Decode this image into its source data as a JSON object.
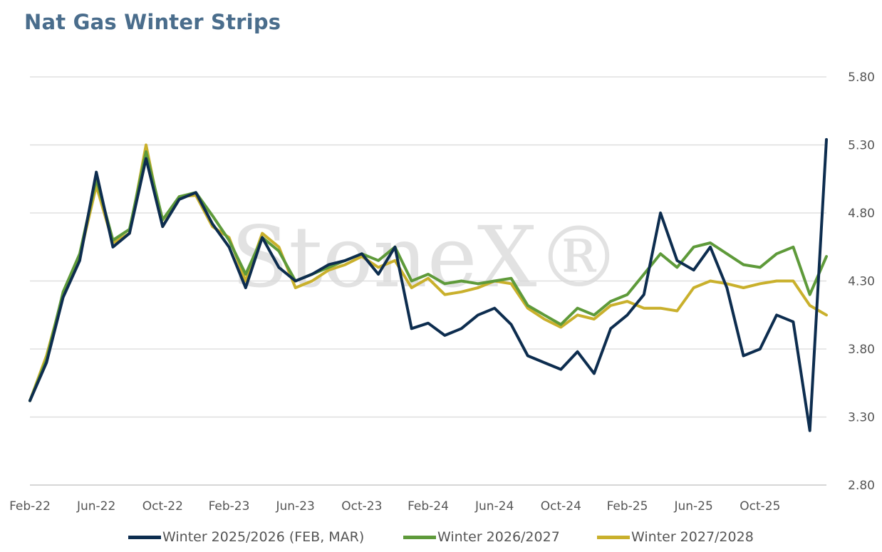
{
  "chart_data": {
    "type": "line",
    "title": "Nat Gas Winter Strips",
    "watermark": "StoneX®",
    "xlabel": "",
    "ylabel": "",
    "x_ticks": [
      "Feb-22",
      "Jun-22",
      "Oct-22",
      "Feb-23",
      "Jun-23",
      "Oct-23",
      "Feb-24",
      "Jun-24",
      "Oct-24",
      "Feb-25",
      "Jun-25",
      "Oct-25"
    ],
    "y_ticks": [
      "2.80",
      "3.30",
      "3.80",
      "4.30",
      "4.80",
      "5.30",
      "5.80"
    ],
    "ylim": [
      2.8,
      5.8
    ],
    "xlim": [
      "2022-02",
      "2026-02"
    ],
    "grid": true,
    "legend_position": "bottom",
    "x": [
      "2022-02",
      "2022-03",
      "2022-04",
      "2022-05",
      "2022-06",
      "2022-07",
      "2022-08",
      "2022-09",
      "2022-10",
      "2022-11",
      "2022-12",
      "2023-01",
      "2023-02",
      "2023-03",
      "2023-04",
      "2023-05",
      "2023-06",
      "2023-07",
      "2023-08",
      "2023-09",
      "2023-10",
      "2023-11",
      "2023-12",
      "2024-01",
      "2024-02",
      "2024-03",
      "2024-04",
      "2024-05",
      "2024-06",
      "2024-07",
      "2024-08",
      "2024-09",
      "2024-10",
      "2024-11",
      "2024-12",
      "2025-01",
      "2025-02",
      "2025-03",
      "2025-04",
      "2025-05",
      "2025-06",
      "2025-07",
      "2025-08",
      "2025-09",
      "2025-10",
      "2025-11",
      "2025-12",
      "2026-01",
      "2026-02"
    ],
    "series": [
      {
        "name": "Winter 2025/2026 (FEB, MAR)",
        "color": "#0d2d4f",
        "values": [
          3.42,
          3.7,
          4.18,
          4.45,
          5.1,
          4.55,
          4.65,
          5.2,
          4.7,
          4.9,
          4.95,
          4.72,
          4.55,
          4.25,
          4.62,
          4.4,
          4.3,
          4.35,
          4.42,
          4.45,
          4.5,
          4.35,
          4.55,
          3.95,
          3.99,
          3.9,
          3.95,
          4.05,
          4.1,
          3.98,
          3.75,
          3.7,
          3.65,
          3.78,
          3.62,
          3.95,
          4.05,
          4.2,
          4.8,
          4.45,
          4.38,
          4.55,
          4.25,
          3.75,
          3.8,
          4.05,
          4.0,
          3.2,
          5.34
        ]
      },
      {
        "name": "Winter 2026/2027",
        "color": "#5e9a3a",
        "values": [
          3.42,
          3.72,
          4.22,
          4.5,
          5.05,
          4.6,
          4.68,
          5.25,
          4.75,
          4.92,
          4.95,
          4.78,
          4.6,
          4.35,
          4.62,
          4.52,
          4.3,
          4.35,
          4.4,
          4.45,
          4.5,
          4.45,
          4.55,
          4.3,
          4.35,
          4.28,
          4.3,
          4.28,
          4.3,
          4.32,
          4.12,
          4.05,
          3.98,
          4.1,
          4.05,
          4.15,
          4.2,
          4.35,
          4.5,
          4.4,
          4.55,
          4.58,
          4.5,
          4.42,
          4.4,
          4.5,
          4.55,
          4.2,
          4.48
        ]
      },
      {
        "name": "Winter 2027/2028",
        "color": "#c9b02c",
        "values": [
          3.42,
          3.75,
          4.2,
          4.48,
          5.0,
          4.58,
          4.65,
          5.3,
          4.7,
          4.92,
          4.93,
          4.7,
          4.62,
          4.3,
          4.65,
          4.55,
          4.25,
          4.3,
          4.38,
          4.42,
          4.48,
          4.4,
          4.45,
          4.25,
          4.32,
          4.2,
          4.22,
          4.25,
          4.3,
          4.28,
          4.1,
          4.02,
          3.96,
          4.05,
          4.02,
          4.12,
          4.15,
          4.1,
          4.1,
          4.08,
          4.25,
          4.3,
          4.28,
          4.25,
          4.28,
          4.3,
          4.3,
          4.12,
          4.05
        ]
      }
    ]
  }
}
